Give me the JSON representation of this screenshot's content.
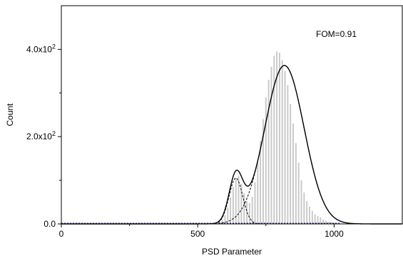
{
  "chart_data": {
    "type": "bar",
    "title": "",
    "xlabel": "PSD Parameter",
    "ylabel": "Count",
    "xlim": [
      0,
      1250
    ],
    "ylim": [
      0,
      500
    ],
    "x_ticks": [
      {
        "value": 0,
        "label": "0"
      },
      {
        "value": 500,
        "label": "500"
      },
      {
        "value": 1000,
        "label": "1000"
      }
    ],
    "y_ticks": [
      {
        "value": 0,
        "label": "0.0",
        "exponent": ""
      },
      {
        "value": 200,
        "label": "2.0x10",
        "exponent": "2"
      },
      {
        "value": 400,
        "label": "4.0x10",
        "exponent": "2"
      }
    ],
    "annotation": "FOM=0.91",
    "grid": false,
    "legend": "none",
    "histogram": {
      "bin_width": 5,
      "bins": [
        {
          "x": 550,
          "count": 1
        },
        {
          "x": 560,
          "count": 2
        },
        {
          "x": 570,
          "count": 3
        },
        {
          "x": 580,
          "count": 5
        },
        {
          "x": 590,
          "count": 10
        },
        {
          "x": 600,
          "count": 20
        },
        {
          "x": 610,
          "count": 38
        },
        {
          "x": 620,
          "count": 60
        },
        {
          "x": 630,
          "count": 85
        },
        {
          "x": 640,
          "count": 105
        },
        {
          "x": 650,
          "count": 110
        },
        {
          "x": 660,
          "count": 92
        },
        {
          "x": 670,
          "count": 70
        },
        {
          "x": 680,
          "count": 52
        },
        {
          "x": 690,
          "count": 48
        },
        {
          "x": 700,
          "count": 62
        },
        {
          "x": 710,
          "count": 95
        },
        {
          "x": 720,
          "count": 140
        },
        {
          "x": 730,
          "count": 190
        },
        {
          "x": 740,
          "count": 240
        },
        {
          "x": 750,
          "count": 290
        },
        {
          "x": 760,
          "count": 330
        },
        {
          "x": 770,
          "count": 360
        },
        {
          "x": 780,
          "count": 385
        },
        {
          "x": 790,
          "count": 395
        },
        {
          "x": 800,
          "count": 392
        },
        {
          "x": 810,
          "count": 375
        },
        {
          "x": 820,
          "count": 350
        },
        {
          "x": 830,
          "count": 318
        },
        {
          "x": 840,
          "count": 275
        },
        {
          "x": 850,
          "count": 230
        },
        {
          "x": 860,
          "count": 185
        },
        {
          "x": 870,
          "count": 140
        },
        {
          "x": 880,
          "count": 100
        },
        {
          "x": 890,
          "count": 72
        },
        {
          "x": 900,
          "count": 52
        },
        {
          "x": 910,
          "count": 40
        },
        {
          "x": 920,
          "count": 30
        },
        {
          "x": 930,
          "count": 22
        },
        {
          "x": 940,
          "count": 18
        },
        {
          "x": 950,
          "count": 15
        },
        {
          "x": 960,
          "count": 10
        },
        {
          "x": 970,
          "count": 7
        },
        {
          "x": 980,
          "count": 5
        },
        {
          "x": 990,
          "count": 4
        },
        {
          "x": 1000,
          "count": 3
        },
        {
          "x": 1010,
          "count": 2
        },
        {
          "x": 1020,
          "count": 1
        }
      ],
      "color": "#c8c8c8"
    },
    "fits": [
      {
        "kind": "gaussian",
        "center": 640,
        "sigma": 25,
        "amplitude": 105,
        "style": "dashed"
      },
      {
        "kind": "gaussian",
        "center": 818,
        "sigma": 72,
        "amplitude": 363,
        "style": "dashed"
      },
      {
        "kind": "sum",
        "style": "solid"
      }
    ],
    "baseline_color": "#1a1a8c"
  }
}
